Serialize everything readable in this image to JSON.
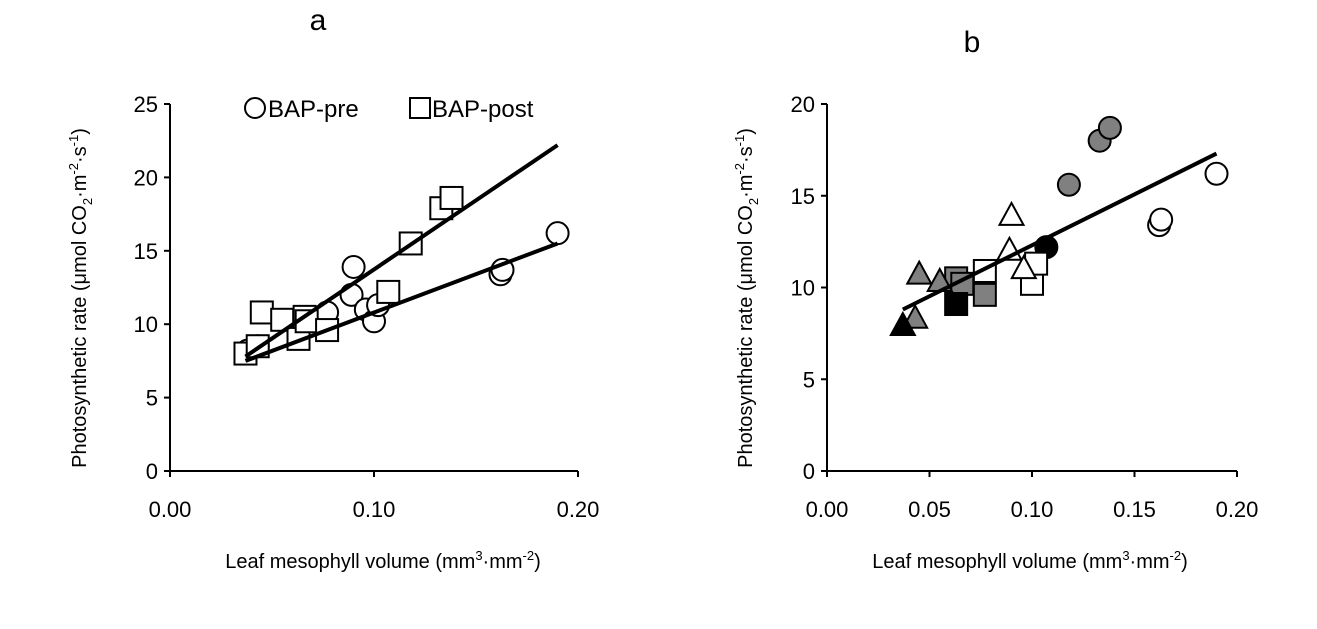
{
  "chart_data": [
    {
      "panel": "a",
      "type": "scatter",
      "title": "a",
      "xlabel": "Leaf mesophyll volume (mm",
      "xlabel_sup1": "3",
      "xlabel_mid": "·mm",
      "xlabel_sup2": "-2",
      "xlabel_end": ")",
      "ylabel": "Photosynthetic rate (μmol CO",
      "ylabel_sub": "2",
      "ylabel_mid": "·m",
      "ylabel_sup1": "-2",
      "ylabel_mid2": "·s",
      "ylabel_sup2": "-1",
      "ylabel_end": ")",
      "xlim": [
        0.0,
        0.2
      ],
      "ylim": [
        0,
        25
      ],
      "xticks": [
        "0.00",
        "0.10",
        "0.20"
      ],
      "xtick_values": [
        0.0,
        0.1,
        0.2
      ],
      "yticks": [
        "0",
        "5",
        "10",
        "15",
        "20",
        "25"
      ],
      "ytick_values": [
        0,
        5,
        10,
        15,
        20,
        25
      ],
      "legend": [
        {
          "label": "BAP-pre",
          "shape": "circle",
          "fill": "#ffffff"
        },
        {
          "label": "BAP-post",
          "shape": "square",
          "fill": "#ffffff"
        }
      ],
      "series": [
        {
          "name": "BAP-pre",
          "shape": "circle",
          "fill": "#ffffff",
          "points": [
            {
              "x": 0.038,
              "y": 8.2
            },
            {
              "x": 0.043,
              "y": 8.5
            },
            {
              "x": 0.077,
              "y": 10.8
            },
            {
              "x": 0.089,
              "y": 12.0
            },
            {
              "x": 0.09,
              "y": 13.9
            },
            {
              "x": 0.096,
              "y": 11.0
            },
            {
              "x": 0.1,
              "y": 10.2
            },
            {
              "x": 0.102,
              "y": 11.3
            },
            {
              "x": 0.162,
              "y": 13.4
            },
            {
              "x": 0.163,
              "y": 13.7
            },
            {
              "x": 0.19,
              "y": 16.2
            }
          ],
          "fit": {
            "x0": 0.037,
            "y0": 7.5,
            "x1": 0.19,
            "y1": 15.5
          }
        },
        {
          "name": "BAP-post",
          "shape": "square",
          "fill": "#ffffff",
          "points": [
            {
              "x": 0.037,
              "y": 8.0
            },
            {
              "x": 0.043,
              "y": 8.5
            },
            {
              "x": 0.045,
              "y": 10.8
            },
            {
              "x": 0.055,
              "y": 10.3
            },
            {
              "x": 0.063,
              "y": 9.0
            },
            {
              "x": 0.066,
              "y": 10.5
            },
            {
              "x": 0.067,
              "y": 10.2
            },
            {
              "x": 0.077,
              "y": 9.6
            },
            {
              "x": 0.107,
              "y": 12.2
            },
            {
              "x": 0.118,
              "y": 15.5
            },
            {
              "x": 0.133,
              "y": 17.9
            },
            {
              "x": 0.138,
              "y": 18.6
            }
          ],
          "fit": {
            "x0": 0.037,
            "y0": 7.8,
            "x1": 0.19,
            "y1": 22.2
          }
        }
      ]
    },
    {
      "panel": "b",
      "type": "scatter",
      "title": "b",
      "xlabel": "Leaf mesophyll volume (mm",
      "xlabel_sup1": "3",
      "xlabel_mid": "·mm",
      "xlabel_sup2": "-2",
      "xlabel_end": ")",
      "ylabel": "Photosynthetic rate (μmol CO",
      "ylabel_sub": "2",
      "ylabel_mid": "·m",
      "ylabel_sup1": "-2",
      "ylabel_mid2": "·s",
      "ylabel_sup2": "-1",
      "ylabel_end": ")",
      "xlim": [
        0.0,
        0.2
      ],
      "ylim": [
        0,
        20
      ],
      "xticks": [
        "0.00",
        "0.05",
        "0.10",
        "0.15",
        "0.20"
      ],
      "xtick_values": [
        0.0,
        0.05,
        0.1,
        0.15,
        0.2
      ],
      "yticks": [
        "0",
        "5",
        "10",
        "15",
        "20"
      ],
      "ytick_values": [
        0,
        5,
        10,
        15,
        20
      ],
      "series": [
        {
          "name": "circle-white",
          "shape": "circle",
          "fill": "#ffffff",
          "points": [
            {
              "x": 0.162,
              "y": 13.4
            },
            {
              "x": 0.163,
              "y": 13.7
            },
            {
              "x": 0.19,
              "y": 16.2
            }
          ]
        },
        {
          "name": "circle-gray",
          "shape": "circle",
          "fill": "#808080",
          "points": [
            {
              "x": 0.118,
              "y": 15.6
            },
            {
              "x": 0.133,
              "y": 18.0
            },
            {
              "x": 0.138,
              "y": 18.7
            }
          ]
        },
        {
          "name": "circle-black",
          "shape": "circle",
          "fill": "#000000",
          "points": [
            {
              "x": 0.107,
              "y": 12.2
            }
          ]
        },
        {
          "name": "square-white",
          "shape": "square",
          "fill": "#ffffff",
          "points": [
            {
              "x": 0.077,
              "y": 10.9
            },
            {
              "x": 0.1,
              "y": 10.2
            },
            {
              "x": 0.102,
              "y": 11.3
            }
          ]
        },
        {
          "name": "square-gray",
          "shape": "square",
          "fill": "#808080",
          "points": [
            {
              "x": 0.063,
              "y": 10.5
            },
            {
              "x": 0.066,
              "y": 10.2
            },
            {
              "x": 0.077,
              "y": 9.6
            }
          ]
        },
        {
          "name": "square-black",
          "shape": "square",
          "fill": "#000000",
          "points": [
            {
              "x": 0.063,
              "y": 9.1
            }
          ]
        },
        {
          "name": "triangle-white",
          "shape": "triangle",
          "fill": "#ffffff",
          "points": [
            {
              "x": 0.09,
              "y": 13.9
            },
            {
              "x": 0.089,
              "y": 12.0
            },
            {
              "x": 0.096,
              "y": 11.0
            }
          ]
        },
        {
          "name": "triangle-gray",
          "shape": "triangle",
          "fill": "#808080",
          "points": [
            {
              "x": 0.045,
              "y": 10.7
            },
            {
              "x": 0.055,
              "y": 10.3
            },
            {
              "x": 0.043,
              "y": 8.3
            }
          ]
        },
        {
          "name": "triangle-black",
          "shape": "triangle",
          "fill": "#000000",
          "points": [
            {
              "x": 0.037,
              "y": 7.9
            }
          ]
        }
      ],
      "fit": {
        "x0": 0.037,
        "y0": 8.8,
        "x1": 0.19,
        "y1": 17.3
      }
    }
  ]
}
